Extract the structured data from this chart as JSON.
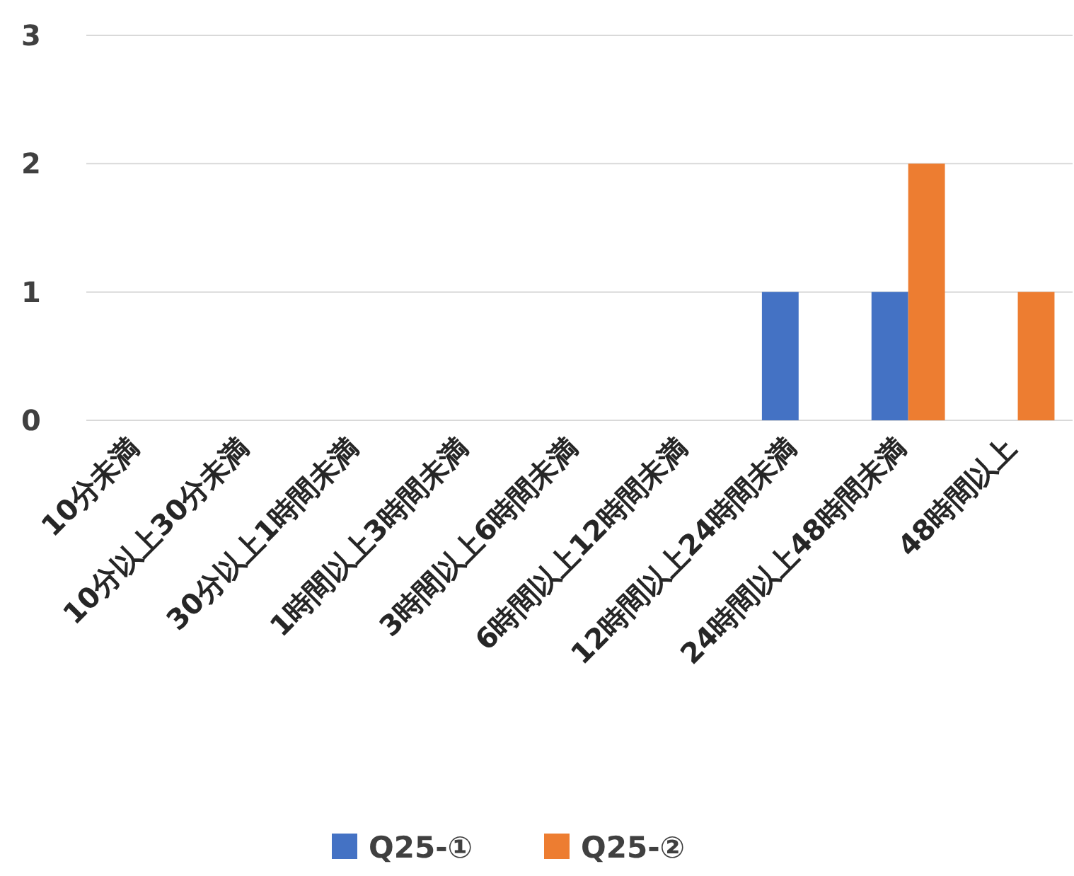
{
  "chart_data": {
    "type": "bar",
    "categories": [
      "10分未満",
      "10分以上30分未満",
      "30分以上1時間未満",
      "1時間以上3時間未満",
      "3時間以上6時間未満",
      "6時間以上12時間未満",
      "12時間以上24時間未満",
      "24時間以上48時間未満",
      "48時間以上"
    ],
    "series": [
      {
        "name": "Q25-①",
        "color": "#4472c4",
        "values": [
          0,
          0,
          0,
          0,
          0,
          0,
          1,
          1,
          0
        ]
      },
      {
        "name": "Q25-②",
        "color": "#ed7d31",
        "values": [
          0,
          0,
          0,
          0,
          0,
          0,
          0,
          2,
          1
        ]
      }
    ],
    "ylim": [
      0,
      3
    ],
    "yticks": [
      0,
      1,
      2,
      3
    ],
    "grid": "y",
    "legend": "bottom"
  }
}
